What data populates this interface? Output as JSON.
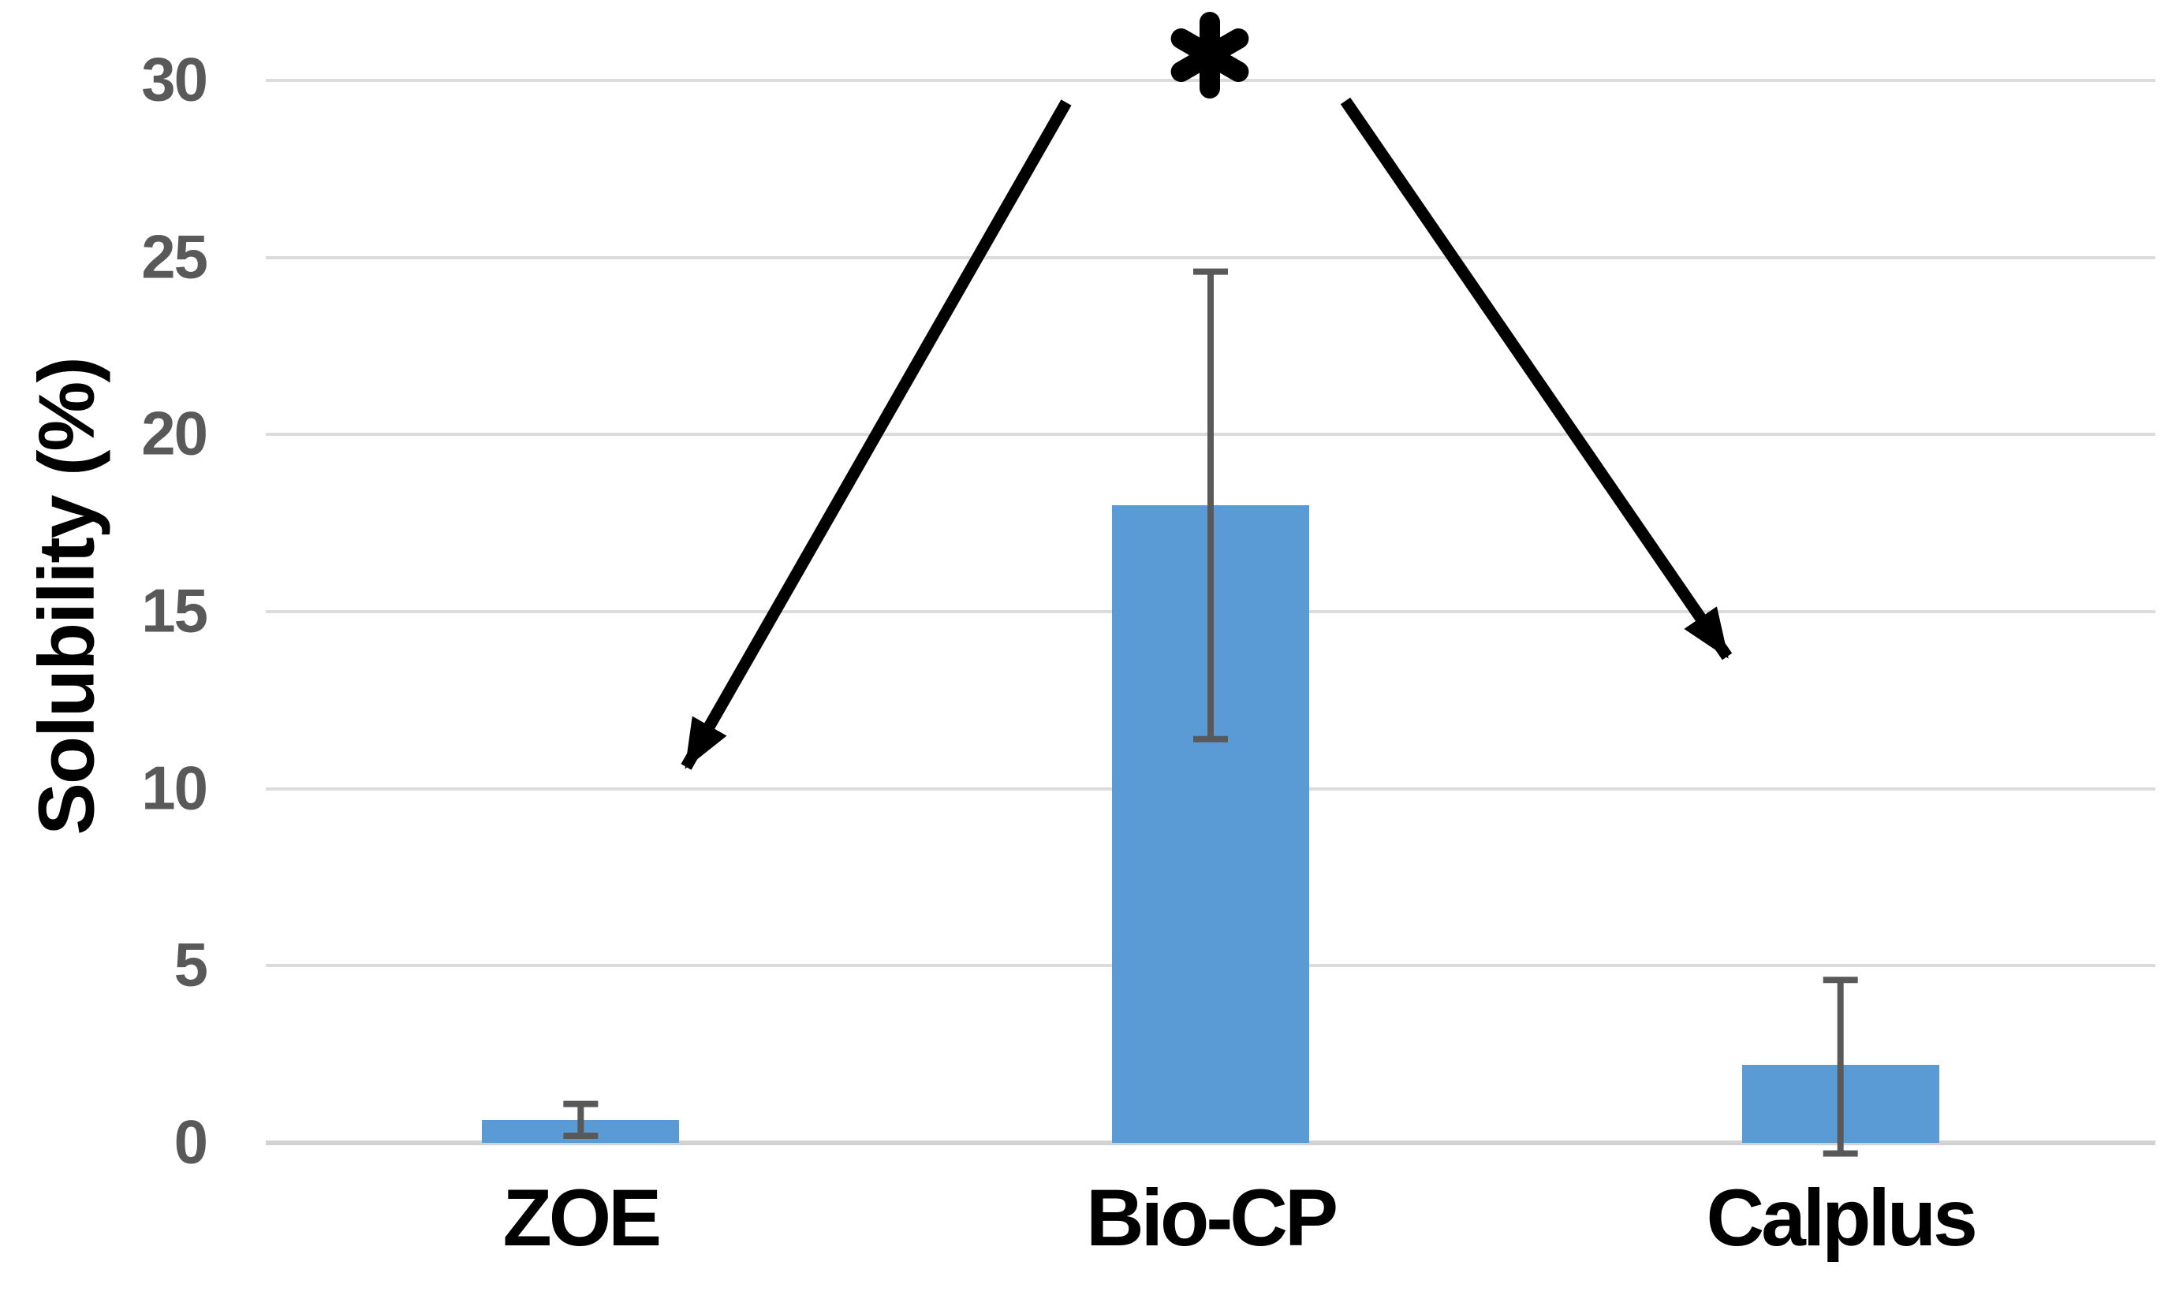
{
  "chart_data": {
    "type": "bar",
    "title": "",
    "xlabel": "",
    "ylabel": "Solubility (%)",
    "categories": [
      "ZOE",
      "Bio-CP",
      "Calplus"
    ],
    "values": [
      0.65,
      18.0,
      2.2
    ],
    "error_low": [
      0.2,
      11.4,
      -0.3
    ],
    "error_high": [
      1.1,
      24.6,
      4.6
    ],
    "ylim": [
      0,
      30
    ],
    "yticks": [
      0,
      5,
      10,
      15,
      20,
      25,
      30
    ],
    "grid": "horizontal",
    "legend_position": "none",
    "colors": {
      "bar": "#5B9BD5",
      "gridline": "#DCDCDC",
      "axis_line": "#D2D2D2",
      "tick_label": "#595959",
      "error_bar": "#595959",
      "annotation": "#000000"
    },
    "annotation": {
      "symbol": "*",
      "arrow_targets": [
        "ZOE",
        "Calplus"
      ]
    }
  }
}
